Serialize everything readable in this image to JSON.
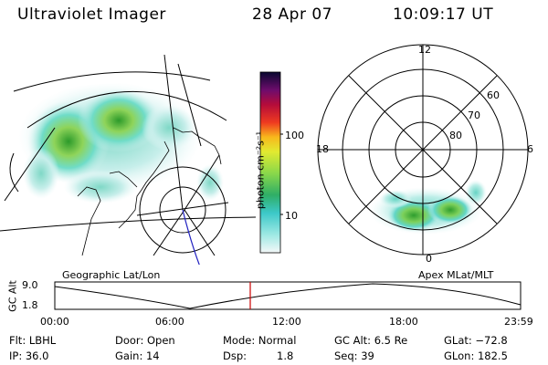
{
  "header": {
    "title": "Ultraviolet Imager",
    "date": "28 Apr 07",
    "time": "10:09:17 UT"
  },
  "colorbar": {
    "unit_label": "photon cm⁻²s⁻¹",
    "ticks": [
      "100",
      "10"
    ]
  },
  "polar_plot": {
    "mlt_labels": {
      "top": "12",
      "left": "18",
      "right": "6",
      "bottom": "0"
    },
    "lat_labels": [
      "60",
      "70",
      "80"
    ]
  },
  "map_labels": {
    "left": "Geographic Lat/Lon",
    "right": "Apex MLat/MLT"
  },
  "altitude_strip": {
    "axis_label": "GC Alt",
    "y_ticks": [
      "9.0",
      "1.8"
    ],
    "time_ticks": [
      "00:00",
      "06:00",
      "12:00",
      "18:00",
      "23:59"
    ],
    "current_time_marker_color": "#cc0000"
  },
  "status": {
    "flt": "Flt: LBHL",
    "ip": "IP: 36.0",
    "door": "Door: Open",
    "gain": "Gain: 14",
    "mode": "Mode: Normal",
    "dsp_label": "Dsp:",
    "dsp_value": "1.8",
    "gc_alt": "GC Alt: 6.5 Re",
    "seq": "Seq: 39",
    "glat": "GLat: −72.8",
    "glon": "GLon: 182.5"
  }
}
